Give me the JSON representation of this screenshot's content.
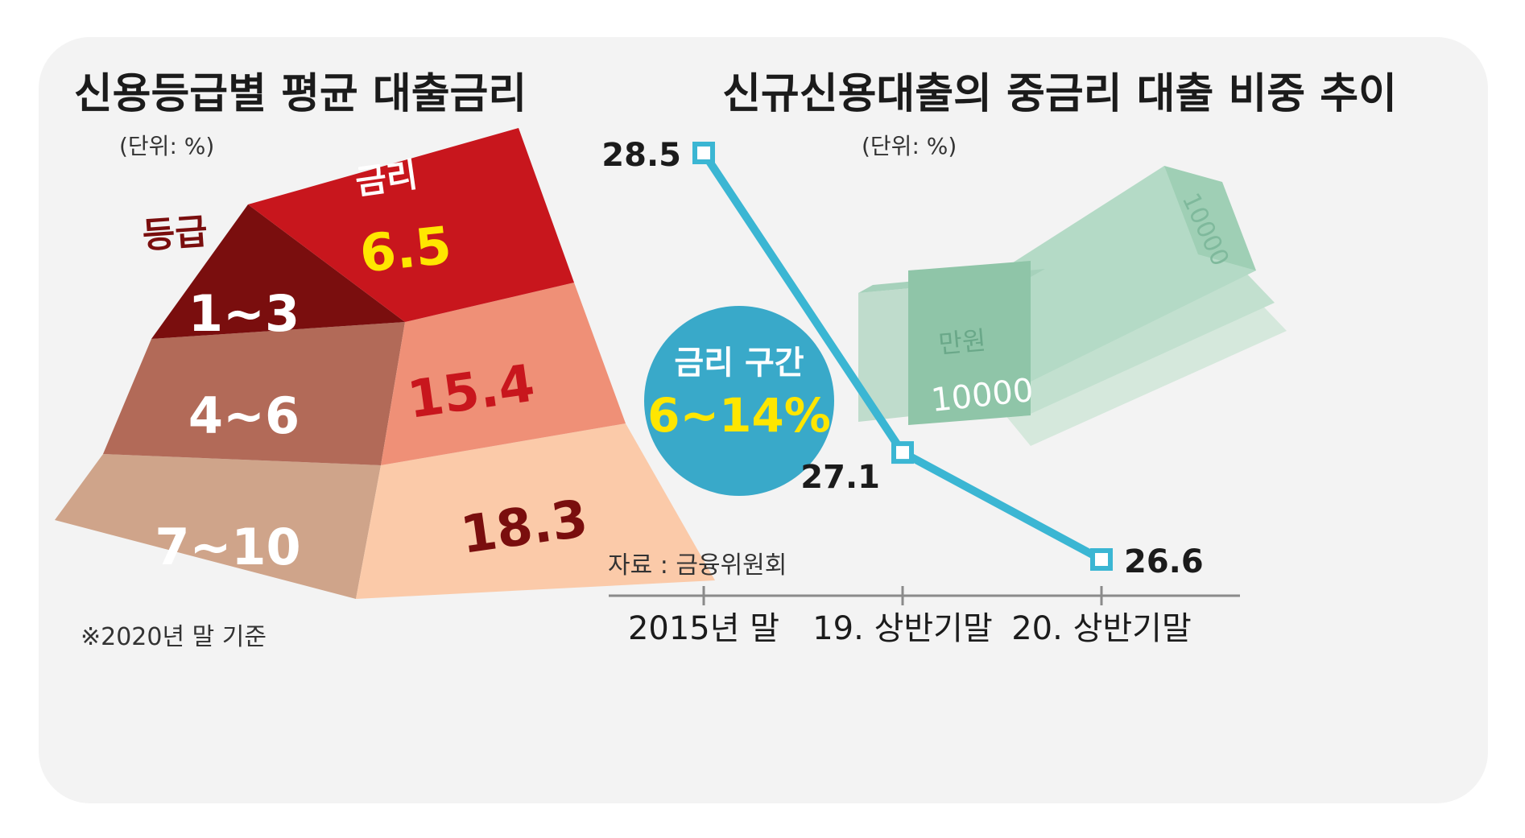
{
  "left_panel": {
    "title": "신용등급별 평균 대출금리",
    "unit": "(단위: %)",
    "header_grade": "등급",
    "header_rate": "금리",
    "footnote": "※2020년 말 기준",
    "colors": {
      "top": "#c8161d",
      "top_dark": "#7a0e0e",
      "mid": "#ef9077",
      "mid_dark": "#b26a58",
      "bot": "#fbcaa9",
      "bot_dark": "#cfa48a",
      "yellow": "#ffe600",
      "dark_red_text": "#7a0e0e"
    }
  },
  "right_panel": {
    "title": "신규신용대출의 중금리 대출 비중 추이",
    "unit": "(단위: %)",
    "badge_line1": "금리 구간",
    "badge_line2": "6~14%",
    "source": "자료 : 금융위원회",
    "money_labels": {
      "bill_value": "10000",
      "wrap_text": "만원"
    },
    "colors": {
      "line": "#3bb6d3",
      "badge": "#39a9c9",
      "money": "#a9d6bf"
    }
  },
  "chart_data": [
    {
      "type": "bar",
      "title": "신용등급별 평균 대출금리",
      "unit": "(단위: %)",
      "categories": [
        "1~3",
        "4~6",
        "7~10"
      ],
      "values": [
        6.5,
        15.4,
        18.3
      ],
      "value_labels": [
        "6.5",
        "15.4",
        "18.3"
      ],
      "note": "※2020년 말 기준"
    },
    {
      "type": "line",
      "title": "신규신용대출의 중금리 대출 비중 추이",
      "unit": "(단위: %)",
      "categories": [
        "2015년 말",
        "19. 상반기말",
        "20. 상반기말"
      ],
      "values": [
        28.5,
        27.1,
        26.6
      ],
      "value_labels": [
        "28.5",
        "27.1",
        "26.6"
      ],
      "source": "자료 : 금융위원회"
    }
  ]
}
